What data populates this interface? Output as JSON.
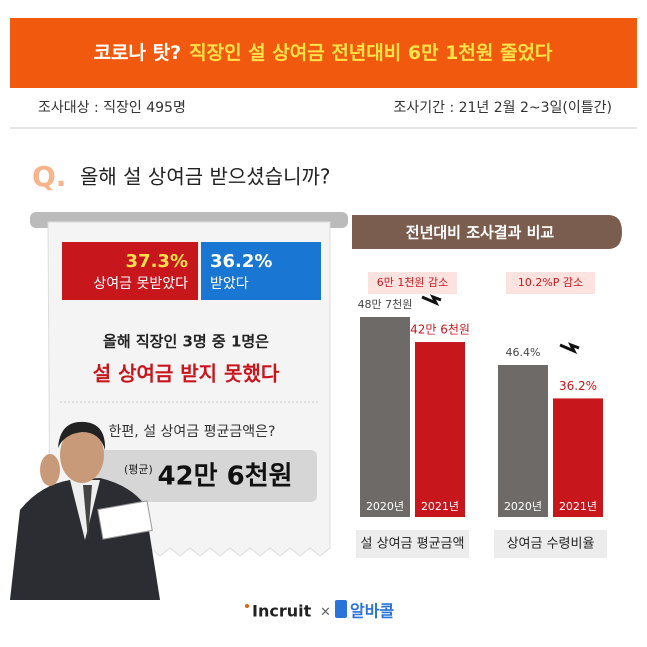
{
  "header": {
    "title_prefix": "코로나 탓?",
    "title": "직장인 설 상여금 전년대비 6만 1천원 줄었다"
  },
  "survey": {
    "target": "조사대상 :  직장인 495명",
    "period": "조사기간 : 21년 2월 2~3일(이틀간)"
  },
  "question": {
    "mark": "Q.",
    "text": "올해 설 상여금 받으셨습니까?"
  },
  "receipt": {
    "not_received_pct": "37.3%",
    "not_received_label": "상여금 못받았다",
    "received_pct": "36.2%",
    "received_label": "받았다",
    "line1": "올해 직장인 3명 중 1명은",
    "line2": "설 상여금 받지 못했다",
    "line3": "한편, 설 상여금 평균금액은?",
    "avg_prefix": "(평균)",
    "avg_value": "42만 6천원"
  },
  "comparison": {
    "title": "전년대비 조사결과 비교"
  },
  "chart_data": [
    {
      "type": "bar",
      "annotation": "6만 1천원 감소",
      "xlabel": "설 상여금 평균금액",
      "categories": [
        "2020년",
        "2021년"
      ],
      "values": [
        487000,
        426000
      ],
      "value_labels": [
        "48만 7천원",
        "42만 6천원"
      ],
      "colors": [
        "#6e6a67",
        "#c8161d"
      ]
    },
    {
      "type": "bar",
      "annotation": "10.2%P 감소",
      "xlabel": "상여금 수령비율",
      "categories": [
        "2020년",
        "2021년"
      ],
      "values": [
        46.4,
        36.2
      ],
      "value_labels": [
        "46.4%",
        "36.2%"
      ],
      "colors": [
        "#6e6a67",
        "#c8161d"
      ]
    }
  ],
  "footer": {
    "brand1": "Incruit",
    "sep": "×",
    "brand2": "알바콜"
  }
}
